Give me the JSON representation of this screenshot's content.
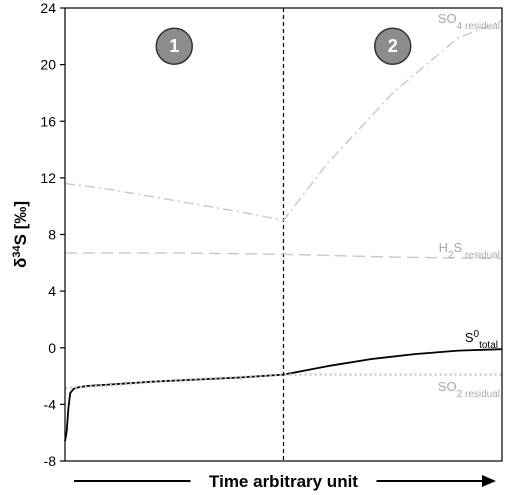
{
  "chart_data": {
    "type": "line",
    "title": "",
    "xlabel": "Time arbitrary unit",
    "ylabel_main": "δ",
    "ylabel_sup": "34",
    "ylabel_rest": "S [‰]",
    "ylim": [
      -8,
      24
    ],
    "xlim": [
      0,
      100
    ],
    "yticks": [
      "24",
      "20",
      "16",
      "12",
      "8",
      "4",
      "0",
      "-4",
      "-8"
    ],
    "ytick_values": [
      24,
      20,
      16,
      12,
      8,
      4,
      0,
      -4,
      -8
    ],
    "grid": false,
    "phase_boundary_x": 50,
    "phases": [
      {
        "label": "1",
        "x": 25,
        "y": 21.3
      },
      {
        "label": "2",
        "x": 75,
        "y": 21.3
      }
    ],
    "series": [
      {
        "name": "SO4 residual",
        "label_main": "SO",
        "label_sub": "4 residual",
        "color": "#c8c8c8",
        "style": "dashdot",
        "x": [
          0,
          10,
          25,
          40,
          50,
          60,
          75,
          90,
          100
        ],
        "y": [
          11.6,
          11.2,
          10.4,
          9.6,
          9.0,
          13.0,
          18.0,
          21.9,
          23.1
        ]
      },
      {
        "name": "H2S residual",
        "label_main": "H",
        "label_mid_sub": "2",
        "label_rest": "S",
        "label_sub": " residual",
        "color": "#c8c8c8",
        "style": "dashed",
        "x": [
          0,
          25,
          50,
          75,
          100
        ],
        "y": [
          6.7,
          6.7,
          6.6,
          6.4,
          6.3
        ]
      },
      {
        "name": "S0 total",
        "label_main": "S",
        "label_sup": "0",
        "label_sub": "total",
        "color": "#000000",
        "style": "solid",
        "x": [
          0,
          0.4,
          0.8,
          1.2,
          2,
          3,
          5,
          10,
          20,
          30,
          40,
          50,
          60,
          70,
          80,
          90,
          100
        ],
        "y": [
          -6.6,
          -5.9,
          -4.2,
          -3.2,
          -2.9,
          -2.8,
          -2.7,
          -2.6,
          -2.4,
          -2.25,
          -2.1,
          -1.9,
          -1.3,
          -0.8,
          -0.45,
          -0.2,
          -0.1
        ]
      },
      {
        "name": "SO2 residual",
        "label_main": "SO",
        "label_sub": "2 residual",
        "color": "#c8c8c8",
        "style": "dotted",
        "x": [
          0,
          10,
          25,
          50,
          75,
          100
        ],
        "y": [
          -2.85,
          -2.65,
          -2.3,
          -1.9,
          -1.9,
          -1.9
        ]
      }
    ]
  }
}
